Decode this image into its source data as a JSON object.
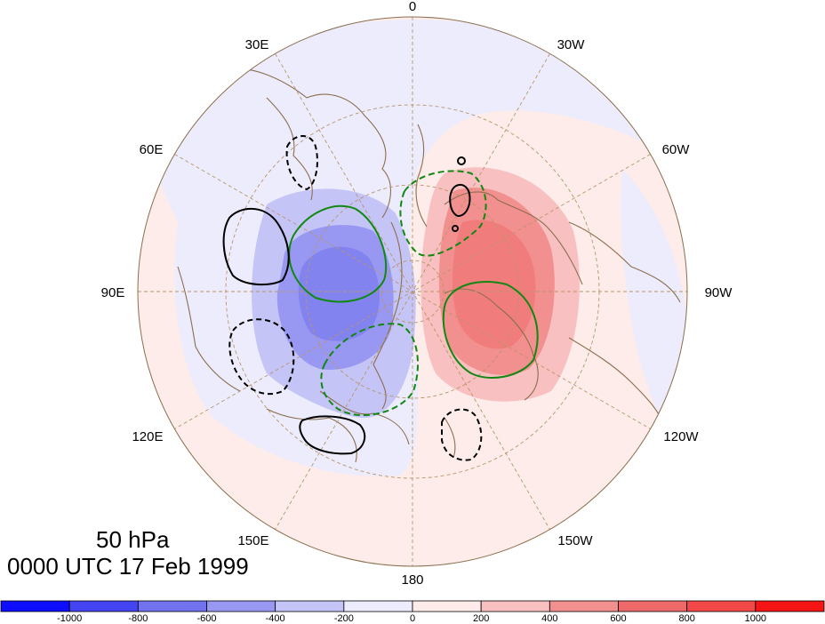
{
  "map": {
    "level": "50 hPa",
    "timestamp": "0000 UTC 17 Feb 1999",
    "longitude_labels": [
      "0",
      "30W",
      "60W",
      "90W",
      "120W",
      "150W",
      "180",
      "150E",
      "120E",
      "90E",
      "60E",
      "30E"
    ]
  },
  "colorbar": {
    "tick_labels": [
      "-1000",
      "-800",
      "-600",
      "-400",
      "-200",
      "0",
      "200",
      "400",
      "600",
      "800",
      "1000"
    ],
    "colors": [
      "#0d0dff",
      "#4444f2",
      "#7272ee",
      "#9898f2",
      "#c4c4f7",
      "#ececfd",
      "#fdecea",
      "#f8c0c0",
      "#f28f8f",
      "#ee6a6a",
      "#f24848",
      "#f51515"
    ]
  },
  "colors": {
    "contour_black": "#000000",
    "contour_green": "#118811",
    "coastline": "#8b6e4e",
    "grid": "#b8966a"
  }
}
